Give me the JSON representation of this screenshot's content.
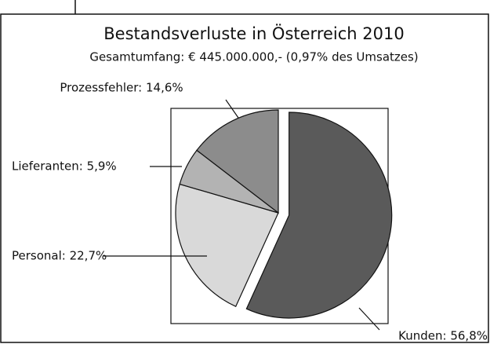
{
  "chart_data": {
    "type": "pie",
    "title": "Bestandsverluste in Österreich 2010",
    "subtitle": "Gesamtumfang: € 445.000.000,- (0,97% des Umsatzes)",
    "values": [
      56.8,
      22.7,
      5.9,
      14.6
    ],
    "value_labels": [
      "Kunden: 56,8%",
      "Personal: 22,7%",
      "Lieferanten: 5,9%",
      "Prozessfehler: 14,6%"
    ],
    "colors": [
      "#5a5a5a",
      "#d9d9d9",
      "#b3b3b3",
      "#8c8c8c"
    ]
  }
}
